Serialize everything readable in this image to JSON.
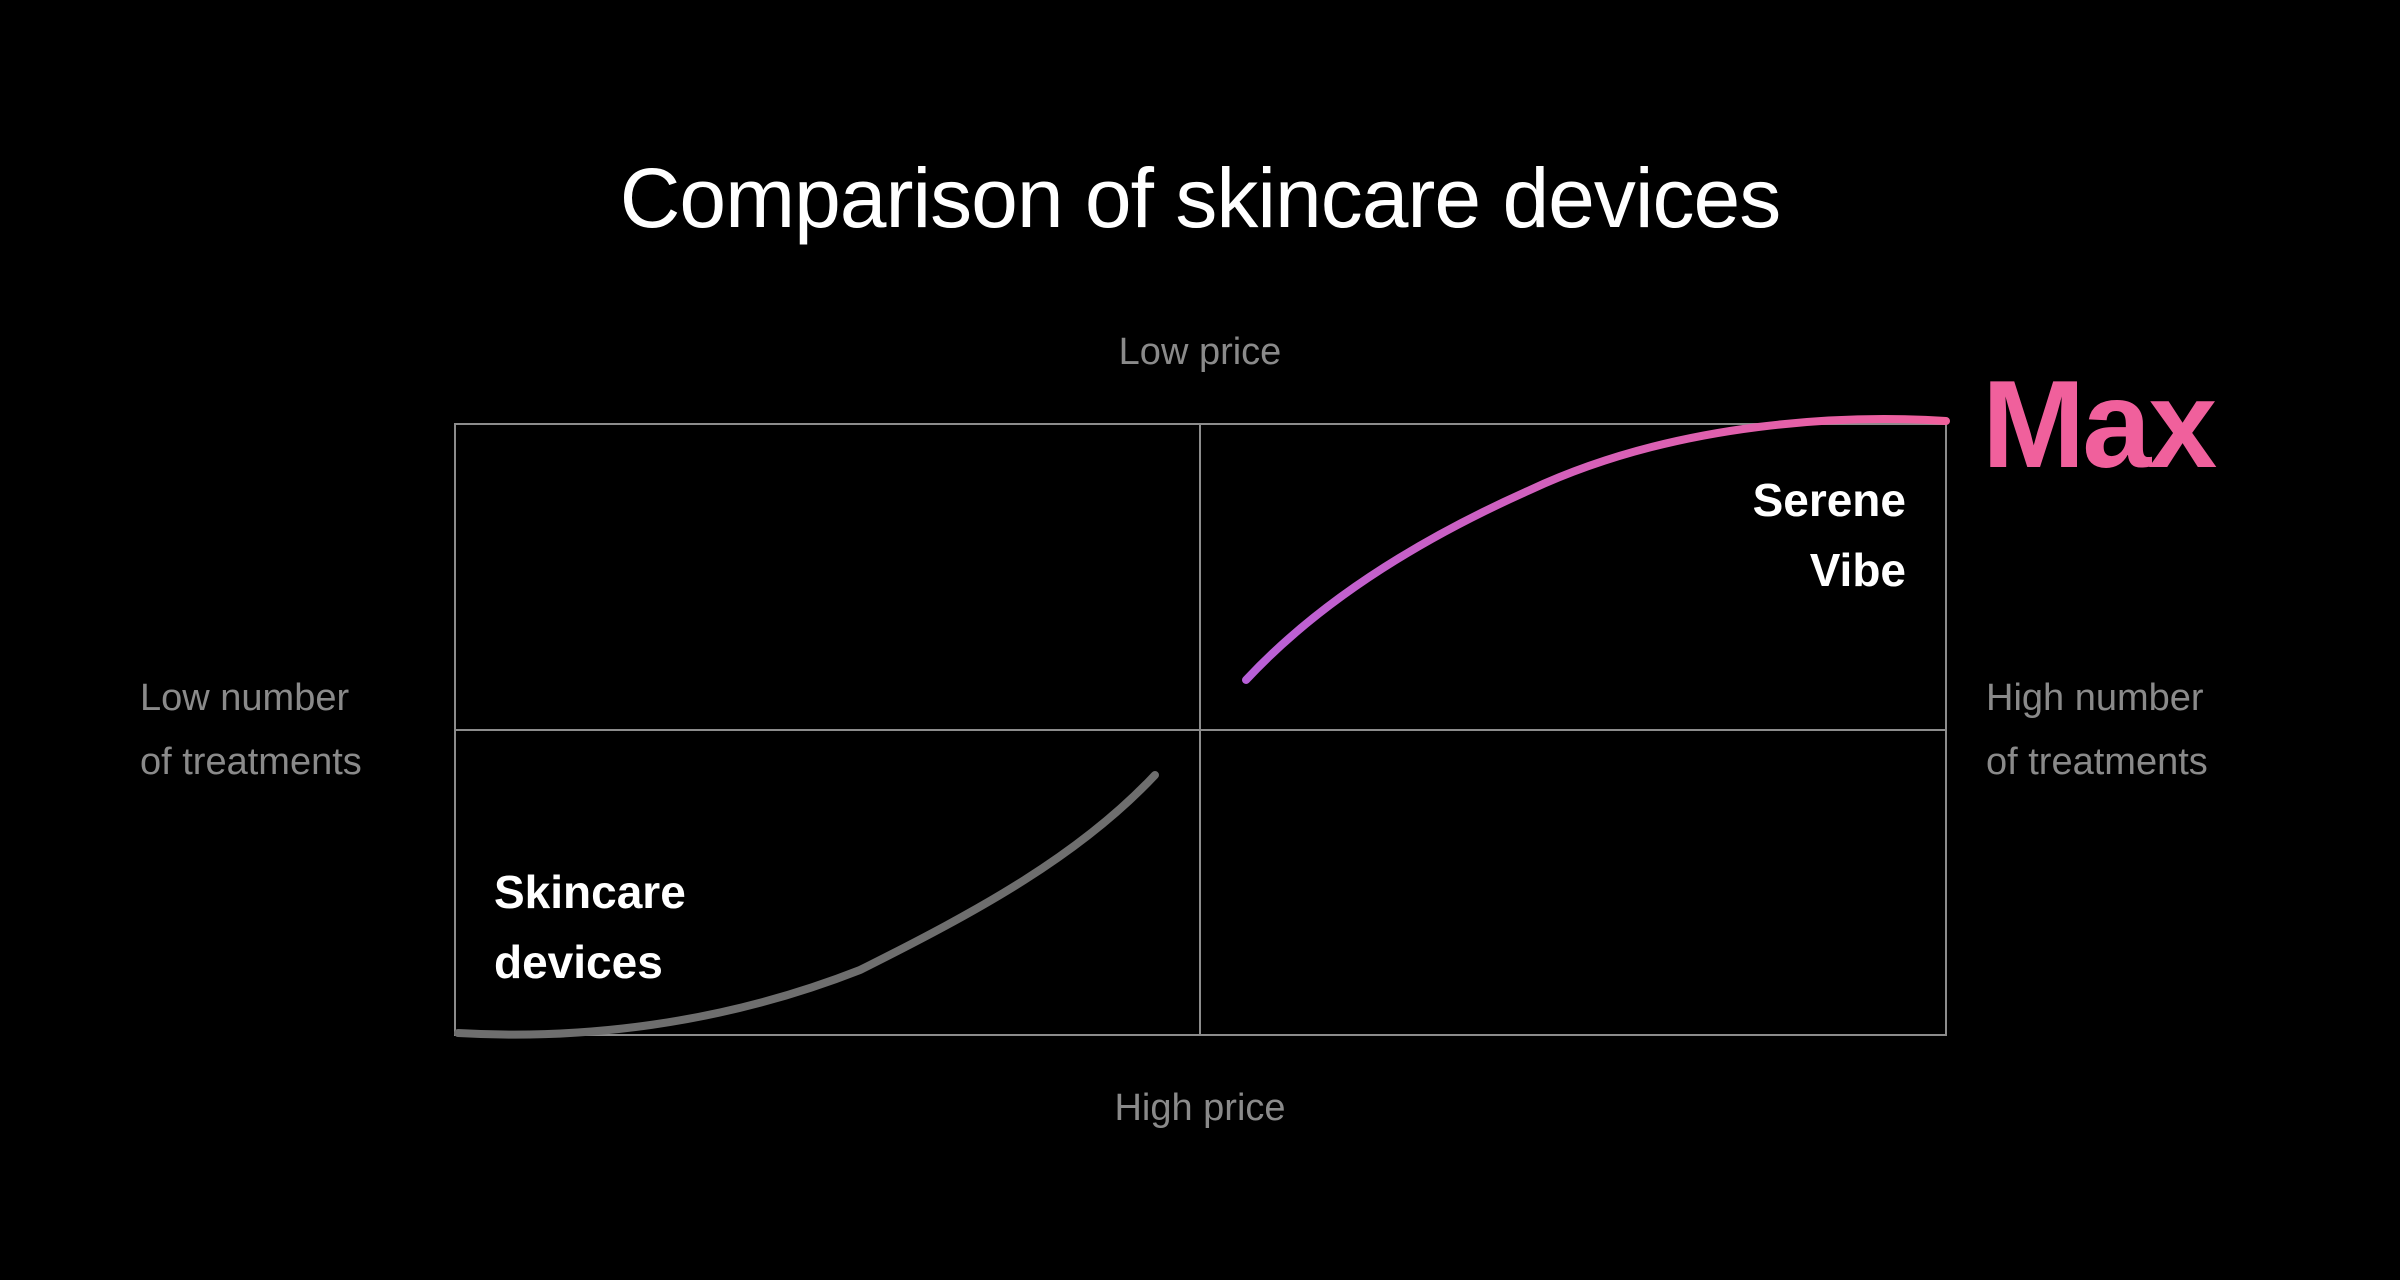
{
  "title": "Comparison of skincare devices",
  "axes": {
    "top": "Low price",
    "bottom": "High price",
    "left": [
      "Low number",
      "of treatments"
    ],
    "right": [
      "High number",
      "of treatments"
    ]
  },
  "labels": {
    "serene": [
      "Serene",
      "Vibe"
    ],
    "skincare": [
      "Skincare",
      "devices"
    ],
    "max": "Max"
  },
  "colors": {
    "background": "#000000",
    "grid": "#8c8c8c",
    "axis_text": "#8a8a8a",
    "max_pink": "#f0609c",
    "curve_purple": "#b860d8",
    "curve_gray": "#6e6e6e"
  }
}
